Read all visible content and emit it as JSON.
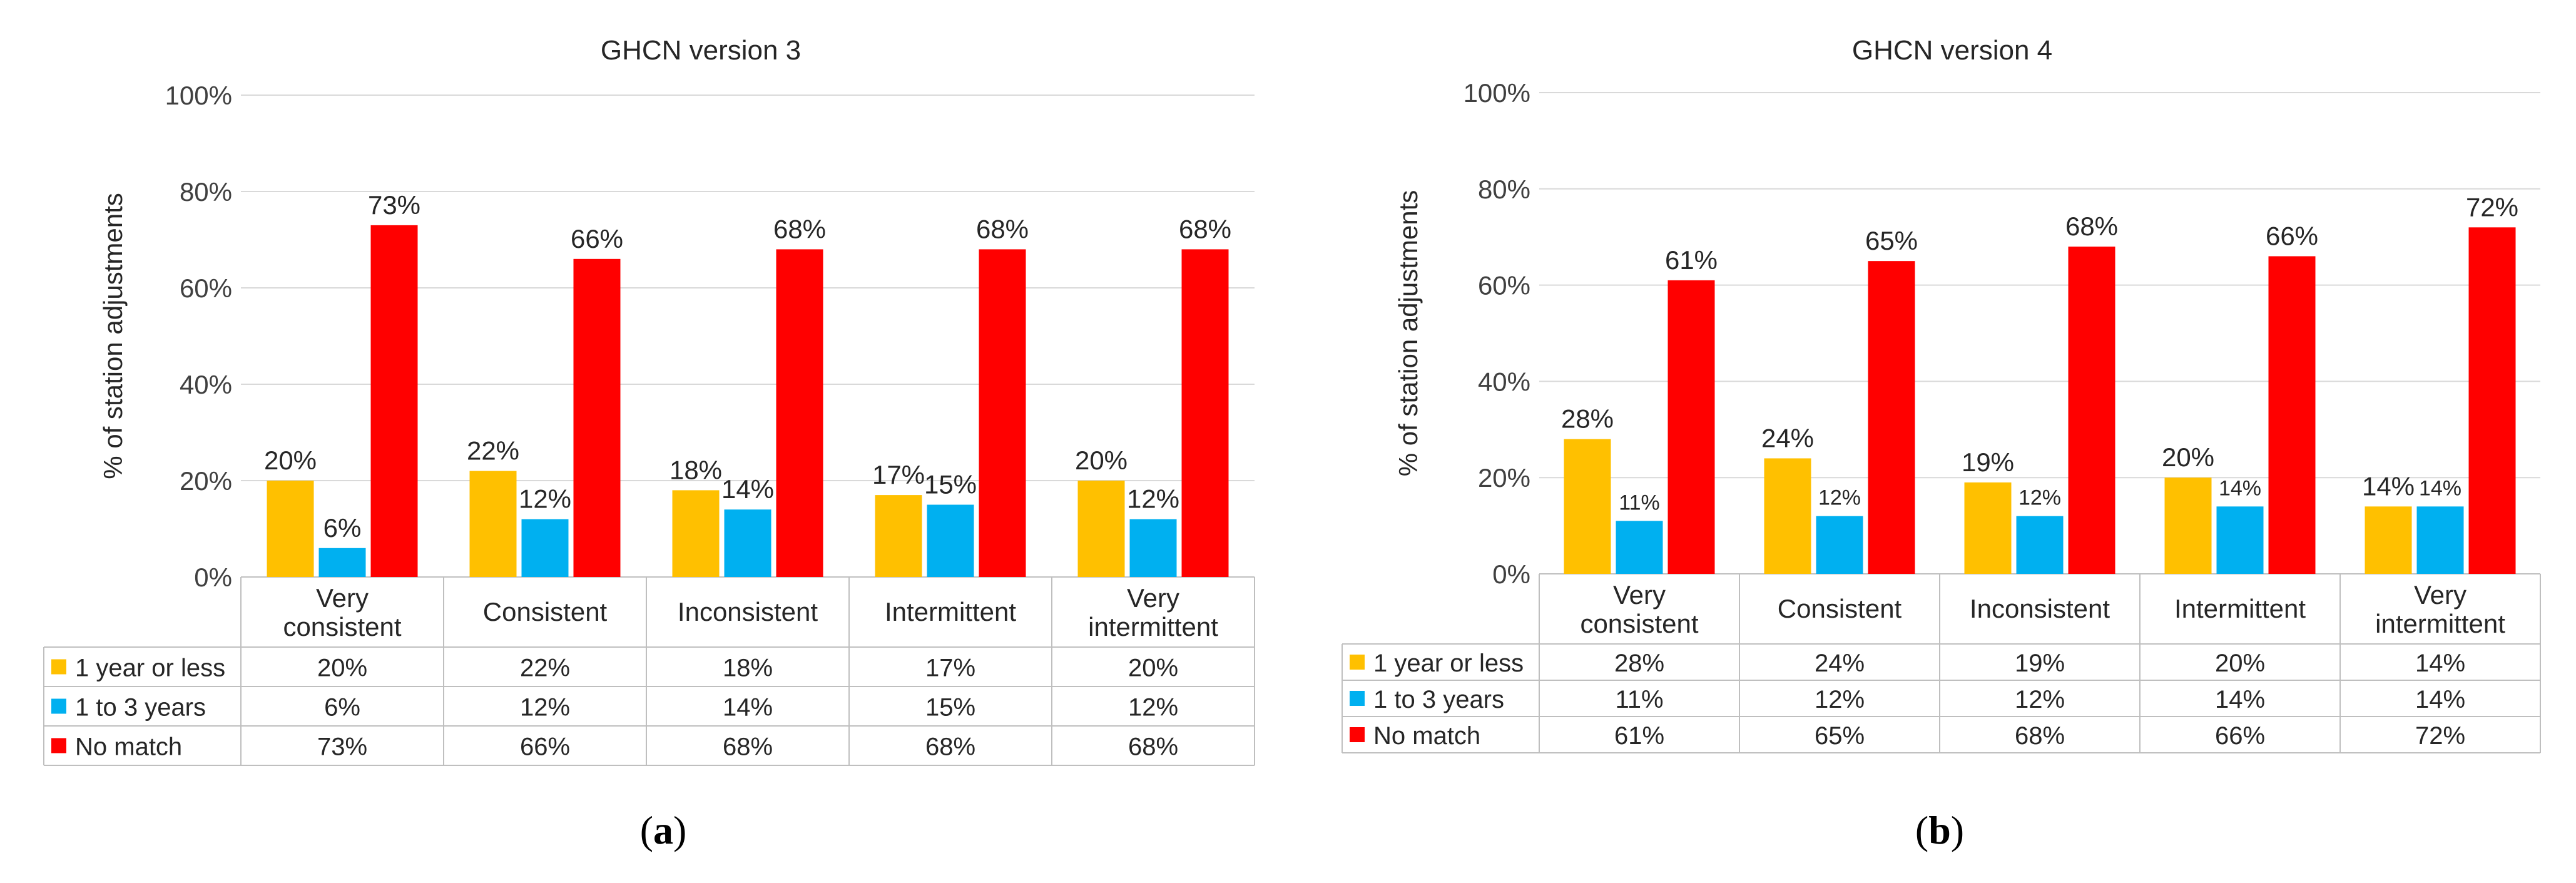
{
  "chart_data": [
    {
      "type": "bar",
      "title": "GHCN version 3",
      "ylabel": "% of station adjustments",
      "ylim": [
        0,
        100
      ],
      "yticks": [
        "0%",
        "20%",
        "40%",
        "60%",
        "80%",
        "100%"
      ],
      "categories": [
        [
          "Very",
          "consistent"
        ],
        [
          "Consistent"
        ],
        [
          "Inconsistent"
        ],
        [
          "Intermittent"
        ],
        [
          "Very",
          "intermittent"
        ]
      ],
      "series": [
        {
          "name": "1 year or less",
          "color": "#FFC000",
          "values": [
            20,
            22,
            18,
            17,
            20
          ],
          "labels": [
            "20%",
            "22%",
            "18%",
            "17%",
            "20%"
          ]
        },
        {
          "name": "1 to 3 years",
          "color": "#00B0F0",
          "values": [
            6,
            12,
            14,
            15,
            12
          ],
          "labels": [
            "6%",
            "12%",
            "14%",
            "15%",
            "12%"
          ]
        },
        {
          "name": "No match",
          "color": "#FF0000",
          "values": [
            73,
            66,
            68,
            68,
            68
          ],
          "labels": [
            "73%",
            "66%",
            "68%",
            "68%",
            "68%"
          ]
        }
      ],
      "grid": true,
      "legend": "data-table",
      "caption_letter": "a"
    },
    {
      "type": "bar",
      "title": "GHCN version 4",
      "ylabel": "% of station adjustments",
      "ylim": [
        0,
        100
      ],
      "yticks": [
        "0%",
        "20%",
        "40%",
        "60%",
        "80%",
        "100%"
      ],
      "categories": [
        [
          "Very",
          "consistent"
        ],
        [
          "Consistent"
        ],
        [
          "Inconsistent"
        ],
        [
          "Intermittent"
        ],
        [
          "Very",
          "intermittent"
        ]
      ],
      "series": [
        {
          "name": "1 year or less",
          "color": "#FFC000",
          "values": [
            28,
            24,
            19,
            20,
            14
          ],
          "labels": [
            "28%",
            "24%",
            "19%",
            "20%",
            "14%"
          ]
        },
        {
          "name": "1 to 3 years",
          "color": "#00B0F0",
          "values": [
            11,
            12,
            12,
            14,
            14
          ],
          "labels": [
            "11%",
            "12%",
            "12%",
            "14%",
            "14%"
          ]
        },
        {
          "name": "No match",
          "color": "#FF0000",
          "values": [
            61,
            65,
            68,
            66,
            72
          ],
          "labels": [
            "61%",
            "65%",
            "68%",
            "66%",
            "72%"
          ]
        }
      ],
      "grid": true,
      "legend": "data-table",
      "caption_letter": "b"
    }
  ]
}
